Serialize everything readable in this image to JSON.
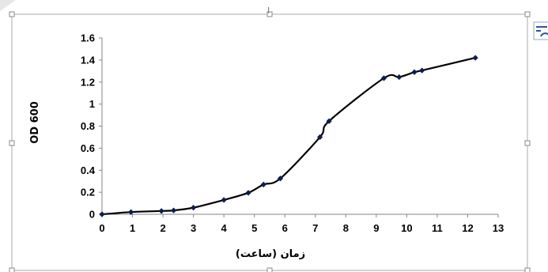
{
  "chart_data": {
    "type": "line",
    "title": "",
    "xlabel": "زمان (ساعت)",
    "ylabel": "OD 600",
    "xlim": [
      0,
      13
    ],
    "ylim": [
      0,
      1.6
    ],
    "x_ticks": [
      "0",
      "1",
      "2",
      "3",
      "4",
      "5",
      "6",
      "7",
      "8",
      "9",
      "10",
      "11",
      "12",
      "13"
    ],
    "y_ticks": [
      "0",
      "0.2",
      "0.4",
      "0.6",
      "0.8",
      "1",
      "1.2",
      "1.4",
      "1.6"
    ],
    "grid": false,
    "legend": "none",
    "series": [
      {
        "color": "#000000",
        "marker_color": "#0d1f4d",
        "x": [
          0,
          0.95,
          1.95,
          2.35,
          3.0,
          4.0,
          4.8,
          5.3,
          5.85,
          7.15,
          7.45,
          9.25,
          9.75,
          10.25,
          10.5,
          12.25
        ],
        "y": [
          0.0,
          0.02,
          0.03,
          0.035,
          0.06,
          0.13,
          0.195,
          0.27,
          0.325,
          0.7,
          0.845,
          1.235,
          1.245,
          1.29,
          1.305,
          1.42
        ]
      }
    ]
  },
  "icons": {
    "layout_options": "layout-options-icon"
  }
}
